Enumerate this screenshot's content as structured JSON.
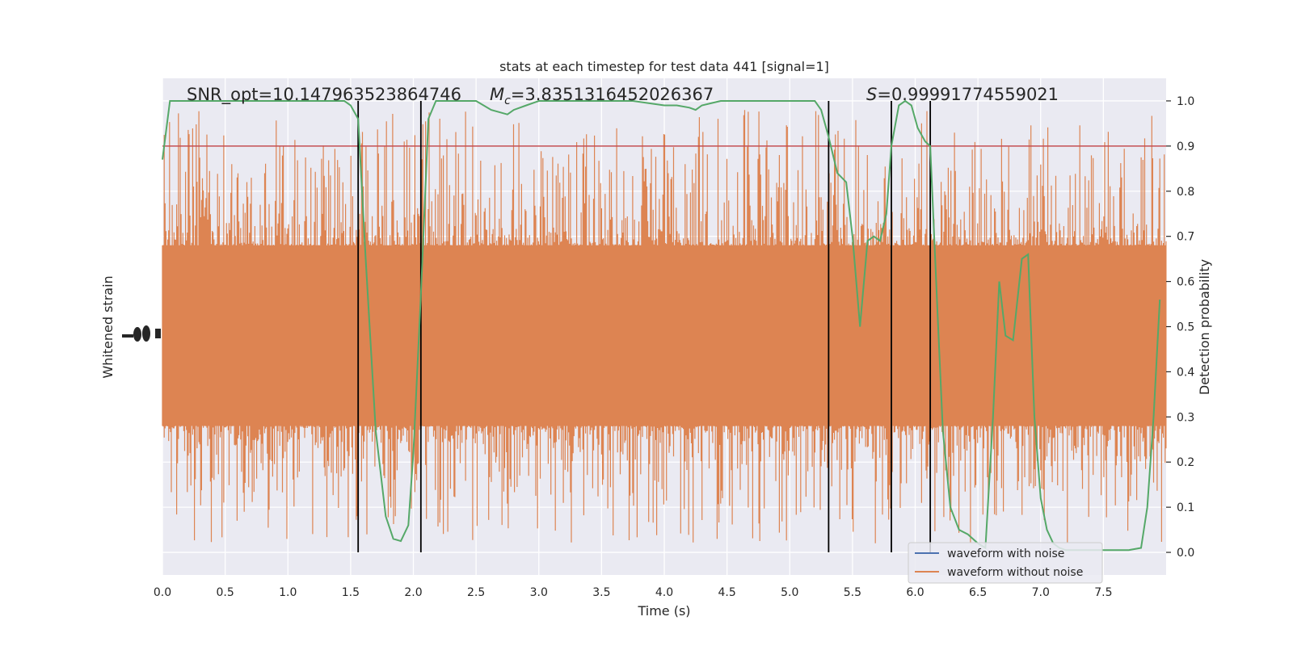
{
  "chart_data": {
    "type": "line",
    "title": "stats at each timestep for test data 441 [signal=1]",
    "xlabel": "Time (s)",
    "ylabel_left": "Whitened strain",
    "ylabel_right": "Detection probability",
    "xlim": [
      0.0,
      8.0
    ],
    "ylim_right": [
      -0.05,
      1.05
    ],
    "xticks": [
      "0.0",
      "0.5",
      "1.0",
      "1.5",
      "2.0",
      "2.5",
      "3.0",
      "3.5",
      "4.0",
      "4.5",
      "5.0",
      "5.5",
      "6.0",
      "6.5",
      "7.0",
      "7.5"
    ],
    "yticks_right": [
      "0.0",
      "0.1",
      "0.2",
      "0.3",
      "0.4",
      "0.5",
      "0.6",
      "0.7",
      "0.8",
      "0.9",
      "1.0"
    ],
    "annotations": {
      "snr": "SNR_opt=10.147963523864746",
      "mc_symbol": "M",
      "mc_sub": "c",
      "mc_value": "=3.8351316452026367",
      "s_symbol": "S",
      "s_value": "=0.99991774559021"
    },
    "threshold": 0.9,
    "vlines_x": [
      1.56,
      2.06,
      5.31,
      5.81,
      6.12
    ],
    "legend": {
      "placement": "lower right",
      "entries": [
        {
          "label": "waveform with noise",
          "color": "#4c72b0"
        },
        {
          "label": "waveform without noise",
          "color": "#dd8452"
        }
      ]
    },
    "series": [
      {
        "name": "waveform without noise",
        "color": "#dd8452",
        "style": "noise band",
        "band_low": 0.28,
        "band_high": 0.68,
        "spike_min": 0.0,
        "spike_max": 1.0
      },
      {
        "name": "",
        "color": "#55a868",
        "x": [
          0.0,
          0.06,
          0.12,
          0.5,
          1.0,
          1.45,
          1.5,
          1.56,
          1.62,
          1.7,
          1.78,
          1.84,
          1.9,
          1.96,
          2.0,
          2.06,
          2.12,
          2.18,
          2.3,
          2.5,
          2.62,
          2.75,
          2.8,
          2.9,
          3.0,
          3.25,
          3.5,
          3.75,
          4.0,
          4.1,
          4.2,
          4.25,
          4.3,
          4.45,
          4.6,
          4.75,
          5.0,
          5.1,
          5.2,
          5.25,
          5.31,
          5.38,
          5.45,
          5.5,
          5.56,
          5.62,
          5.67,
          5.72,
          5.77,
          5.81,
          5.87,
          5.92,
          5.97,
          6.02,
          6.08,
          6.12,
          6.18,
          6.22,
          6.28,
          6.35,
          6.42,
          6.5,
          6.56,
          6.62,
          6.67,
          6.72,
          6.78,
          6.85,
          6.9,
          6.95,
          7.0,
          7.05,
          7.1,
          7.15,
          7.2,
          7.3,
          7.4,
          7.5,
          7.6,
          7.7,
          7.8,
          7.85,
          7.9,
          7.95
        ],
        "y": [
          0.87,
          1.0,
          1.0,
          1.0,
          1.0,
          1.0,
          0.99,
          0.96,
          0.65,
          0.27,
          0.08,
          0.03,
          0.025,
          0.06,
          0.22,
          0.57,
          0.96,
          1.0,
          1.0,
          1.0,
          0.98,
          0.97,
          0.98,
          0.99,
          1.0,
          1.0,
          1.0,
          1.0,
          0.99,
          0.99,
          0.985,
          0.98,
          0.99,
          1.0,
          1.0,
          1.0,
          1.0,
          1.0,
          1.0,
          0.98,
          0.92,
          0.84,
          0.82,
          0.7,
          0.5,
          0.69,
          0.7,
          0.69,
          0.75,
          0.9,
          0.99,
          1.0,
          0.99,
          0.94,
          0.91,
          0.9,
          0.52,
          0.27,
          0.1,
          0.05,
          0.04,
          0.02,
          0.01,
          0.3,
          0.6,
          0.48,
          0.47,
          0.65,
          0.66,
          0.3,
          0.12,
          0.05,
          0.02,
          0.01,
          0.005,
          0.005,
          0.005,
          0.005,
          0.005,
          0.005,
          0.01,
          0.1,
          0.3,
          0.56
        ]
      }
    ],
    "left_axis_tick_labels_overlapping": "-1.0"
  }
}
